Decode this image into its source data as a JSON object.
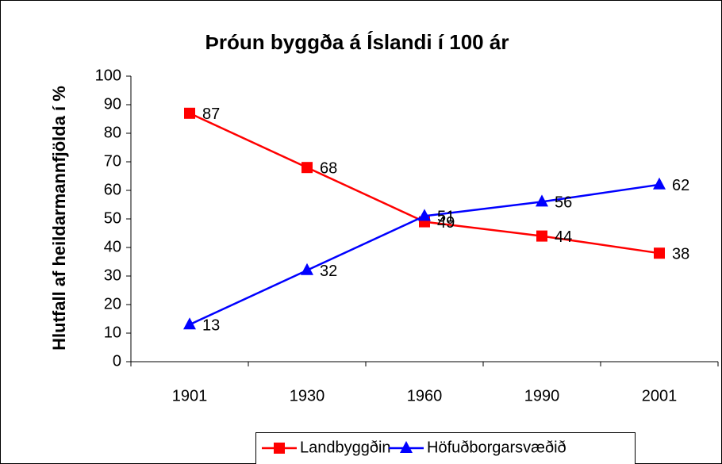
{
  "chart_data": {
    "type": "line",
    "title": "Þróun byggða á Íslandi í 100 ár",
    "y_label": "Hlutfall af heildarmannfjölda í %",
    "categories": [
      "1901",
      "1930",
      "1960",
      "1990",
      "2001"
    ],
    "series": [
      {
        "name": "Landbyggðin",
        "color": "#ff0000",
        "marker": "square",
        "values": [
          87,
          68,
          49,
          44,
          38
        ]
      },
      {
        "name": "Höfuðborgarsvæðið",
        "color": "#0000ff",
        "marker": "triangle",
        "values": [
          13,
          32,
          51,
          56,
          62
        ]
      }
    ],
    "ylim": [
      0,
      100
    ],
    "yticks": [
      0,
      10,
      20,
      30,
      40,
      50,
      60,
      70,
      80,
      90,
      100
    ],
    "grid": false,
    "legend": "bottom"
  }
}
